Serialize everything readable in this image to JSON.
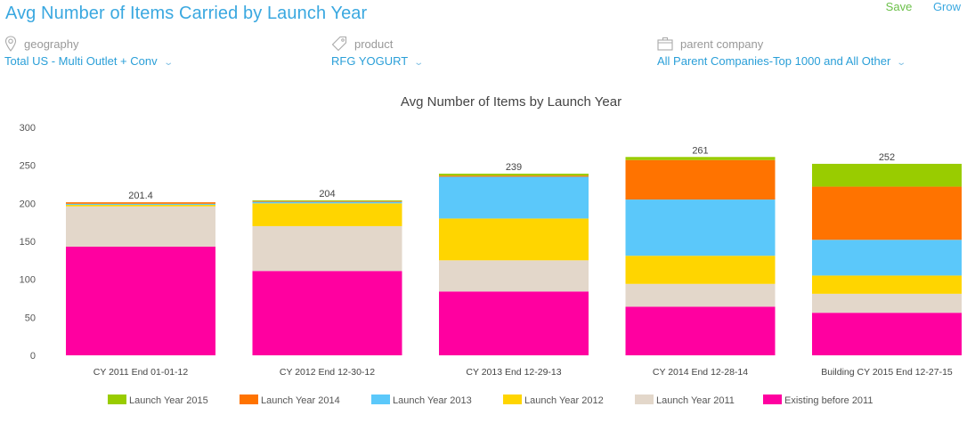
{
  "header": {
    "title": "Avg Number of Items Carried by Launch Year",
    "actions": {
      "save_label": "Save",
      "grow_label": "Grow"
    }
  },
  "filters": [
    {
      "icon": "map-pin-icon",
      "label": "geography",
      "value": "Total US - Multi Outlet + Conv"
    },
    {
      "icon": "tag-icon",
      "label": "product",
      "value": "RFG YOGURT"
    },
    {
      "icon": "briefcase-icon",
      "label": "parent company",
      "value": "All Parent Companies-Top 1000 and All Other"
    }
  ],
  "chart_data": {
    "type": "bar",
    "stacked": true,
    "title": "Avg Number of Items by Launch Year",
    "xlabel": "",
    "ylabel": "",
    "ylim": [
      0,
      300
    ],
    "yticks": [
      0,
      50,
      100,
      150,
      200,
      250,
      300
    ],
    "grid": false,
    "legend_position": "bottom",
    "categories": [
      "CY 2011 End 01-01-12",
      "CY 2012 End 12-30-12",
      "CY 2013 End 12-29-13",
      "CY 2014 End 12-28-14",
      "Building CY 2015 End 12-27-15"
    ],
    "totals": [
      "201.4",
      "204",
      "239",
      "261",
      "252"
    ],
    "series": [
      {
        "name": "Existing before 2011",
        "color": "#ff00a0",
        "values": [
          143,
          111,
          84,
          64,
          56
        ]
      },
      {
        "name": "Launch Year 2011",
        "color": "#e3d7ca",
        "values": [
          53,
          59,
          41,
          30,
          25
        ]
      },
      {
        "name": "Launch Year 2012",
        "color": "#ffd500",
        "values": [
          2,
          30,
          55,
          37,
          24
        ]
      },
      {
        "name": "Launch Year 2013",
        "color": "#5bc8fa",
        "values": [
          1.4,
          2,
          55,
          74,
          47
        ]
      },
      {
        "name": "Launch Year 2014",
        "color": "#ff7300",
        "values": [
          2,
          1,
          1.5,
          52,
          70
        ]
      },
      {
        "name": "Launch Year 2015",
        "color": "#99cc00",
        "values": [
          0,
          1,
          2.5,
          4,
          30
        ]
      }
    ],
    "legend_order": [
      "Launch Year 2015",
      "Launch Year 2014",
      "Launch Year 2013",
      "Launch Year 2012",
      "Launch Year 2011",
      "Existing before 2011"
    ]
  }
}
